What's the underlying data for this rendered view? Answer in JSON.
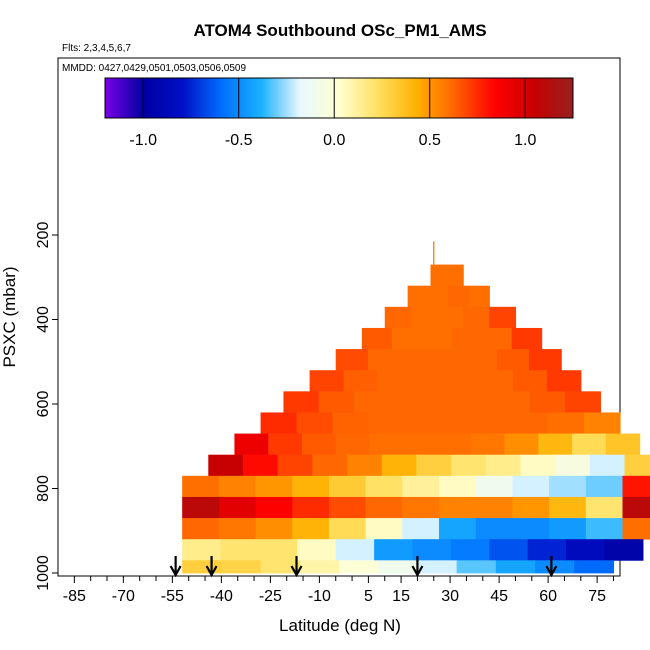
{
  "chart_data": {
    "type": "heatmap",
    "title": "ATOM4 Southbound OSc_PM1_AMS",
    "flights_label": "Flts: 2,3,4,5,6,7",
    "dates_label": "MMDD: 0427,0429,0501,0503,0506,0509",
    "xlabel": "Latitude (deg N)",
    "ylabel": "PSXC (mbar)",
    "xlim": [
      -90,
      82
    ],
    "ylim": [
      1000,
      100
    ],
    "x_ticks": [
      "-85",
      "-70",
      "-55",
      "-40",
      "-25",
      "-10",
      "5",
      "15",
      "30",
      "45",
      "60",
      "75"
    ],
    "x_tick_values": [
      -85,
      -70,
      -55,
      -40,
      -25,
      -10,
      5,
      15,
      30,
      45,
      60,
      75
    ],
    "y_ticks": [
      "200",
      "400",
      "600",
      "800",
      "1000"
    ],
    "y_tick_values": [
      200,
      400,
      600,
      800,
      1000
    ],
    "colorbar": {
      "range": [
        -1.2,
        1.25
      ],
      "ticks": [
        "-1.0",
        "-0.5",
        "0.0",
        "0.5",
        "1.0"
      ],
      "tick_values": [
        -1.0,
        -0.5,
        0.0,
        0.5,
        1.0
      ],
      "colors": [
        "#7a00e8",
        "#0000a0",
        "#0010c8",
        "#0070ff",
        "#1ab0ff",
        "#e8f8ff",
        "#ffffd0",
        "#ffe060",
        "#ffb000",
        "#ff6000",
        "#ff0000",
        "#c80000",
        "#962020"
      ]
    },
    "layers": [
      {
        "p_top": 270,
        "p_bot": 320,
        "lat": [
          24,
          34
        ],
        "values": [
          0.6
        ]
      },
      {
        "p_top": 320,
        "p_bot": 370,
        "lat": [
          17,
          42
        ],
        "values": [
          0.6,
          0.6,
          0.62,
          0.6
        ]
      },
      {
        "p_top": 370,
        "p_bot": 420,
        "lat": [
          10,
          50
        ],
        "values": [
          0.62,
          0.6,
          0.6,
          0.62,
          0.7
        ]
      },
      {
        "p_top": 420,
        "p_bot": 470,
        "lat": [
          3,
          58
        ],
        "values": [
          0.65,
          0.6,
          0.6,
          0.62,
          0.62,
          0.72
        ]
      },
      {
        "p_top": 470,
        "p_bot": 520,
        "lat": [
          -5,
          64
        ],
        "values": [
          0.68,
          0.62,
          0.62,
          0.62,
          0.62,
          0.65,
          0.72
        ]
      },
      {
        "p_top": 520,
        "p_bot": 570,
        "lat": [
          -13,
          70
        ],
        "values": [
          0.7,
          0.64,
          0.62,
          0.62,
          0.62,
          0.62,
          0.65,
          0.72
        ]
      },
      {
        "p_top": 570,
        "p_bot": 620,
        "lat": [
          -21,
          76
        ],
        "values": [
          0.72,
          0.65,
          0.62,
          0.62,
          0.62,
          0.62,
          0.62,
          0.65,
          0.7
        ]
      },
      {
        "p_top": 620,
        "p_bot": 670,
        "lat": [
          -28,
          82
        ],
        "values": [
          0.75,
          0.68,
          0.63,
          0.62,
          0.62,
          0.62,
          0.62,
          0.62,
          0.6,
          0.55
        ]
      },
      {
        "p_top": 670,
        "p_bot": 720,
        "lat": [
          -36,
          88
        ],
        "values": [
          0.9,
          0.72,
          0.65,
          0.62,
          0.6,
          0.6,
          0.6,
          0.58,
          0.52,
          0.4,
          0.25,
          0.35
        ]
      },
      {
        "p_top": 720,
        "p_bot": 770,
        "lat": [
          -44,
          94
        ],
        "values": [
          1.05,
          0.82,
          0.7,
          0.62,
          0.55,
          0.42,
          0.3,
          0.2,
          0.15,
          0.05,
          -0.05,
          -0.2,
          0.3
        ]
      },
      {
        "p_top": 770,
        "p_bot": 820,
        "lat": [
          -52,
          94
        ],
        "values": [
          0.6,
          0.55,
          0.5,
          0.42,
          0.32,
          0.22,
          0.12,
          0.05,
          -0.1,
          -0.2,
          -0.25,
          -0.3,
          0.8
        ]
      },
      {
        "p_top": 820,
        "p_bot": 870,
        "lat": [
          -52,
          94
        ],
        "values": [
          1.1,
          0.95,
          0.85,
          0.75,
          0.68,
          0.62,
          0.58,
          0.55,
          0.55,
          0.5,
          0.4,
          0.2,
          1.1
        ]
      },
      {
        "p_top": 870,
        "p_bot": 920,
        "lat": [
          -52,
          94
        ],
        "values": [
          0.62,
          0.58,
          0.52,
          0.42,
          0.25,
          0.05,
          -0.2,
          -0.42,
          -0.5,
          -0.5,
          -0.45,
          -0.35,
          0.6
        ]
      },
      {
        "p_top": 920,
        "p_bot": 970,
        "lat": [
          -52,
          89
        ],
        "values": [
          0.15,
          0.2,
          0.2,
          0.05,
          -0.2,
          -0.45,
          -0.5,
          -0.55,
          -0.65,
          -0.75,
          -0.85,
          -0.95
        ]
      },
      {
        "p_top": 970,
        "p_bot": 1000,
        "lat": [
          -52,
          80
        ],
        "values": [
          0.3,
          0.28,
          0.2,
          0.1,
          0.0,
          -0.1,
          -0.2,
          -0.32,
          -0.42,
          -0.5,
          -0.6
        ]
      }
    ],
    "spike": {
      "lat": 25,
      "p_top": 215,
      "p_bot": 270,
      "value": 0.6
    },
    "arrows_lat": [
      -54,
      -43,
      -17,
      20,
      61
    ]
  }
}
